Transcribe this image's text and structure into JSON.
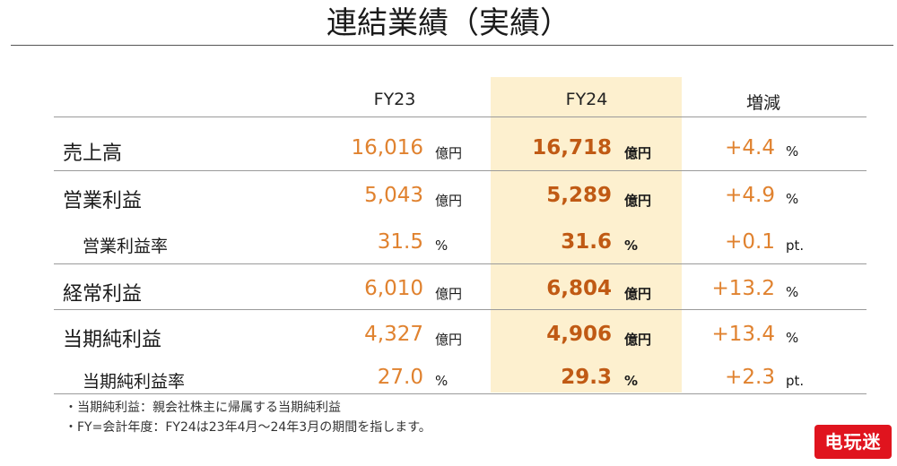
{
  "title": "連結業績（実績）",
  "columns": {
    "fy23": "FY23",
    "fy24": "FY24",
    "change": "増減"
  },
  "rows": [
    {
      "label": "売上高",
      "fy23": "16,016",
      "fy23_unit": "億円",
      "fy24": "16,718",
      "fy24_unit": "億円",
      "change": "+4.4",
      "change_unit": "%"
    },
    {
      "label": "営業利益",
      "fy23": "5,043",
      "fy23_unit": "億円",
      "fy24": "5,289",
      "fy24_unit": "億円",
      "change": "+4.9",
      "change_unit": "%"
    },
    {
      "label": "営業利益率",
      "fy23": "31.5",
      "fy23_unit": "%",
      "fy24": "31.6",
      "fy24_unit": "%",
      "change": "+0.1",
      "change_unit": "pt."
    },
    {
      "label": "経常利益",
      "fy23": "6,010",
      "fy23_unit": "億円",
      "fy24": "6,804",
      "fy24_unit": "億円",
      "change": "+13.2",
      "change_unit": "%"
    },
    {
      "label": "当期純利益",
      "fy23": "4,327",
      "fy23_unit": "億円",
      "fy24": "4,906",
      "fy24_unit": "億円",
      "change": "+13.4",
      "change_unit": "%"
    },
    {
      "label": "当期純利益率",
      "fy23": "27.0",
      "fy23_unit": "%",
      "fy24": "29.3",
      "fy24_unit": "%",
      "change": "+2.3",
      "change_unit": "pt."
    }
  ],
  "notes": [
    "・当期純利益：親会社株主に帰属する当期純利益",
    "・FY=会計年度：FY24は23年4月～24年3月の期間を指します。"
  ],
  "watermark": "电玩迷",
  "colors": {
    "value_orange": "#e0822f",
    "fy24_value": "#c05a14",
    "highlight": "#fdf0cf",
    "watermark_red": "#e0141e"
  }
}
